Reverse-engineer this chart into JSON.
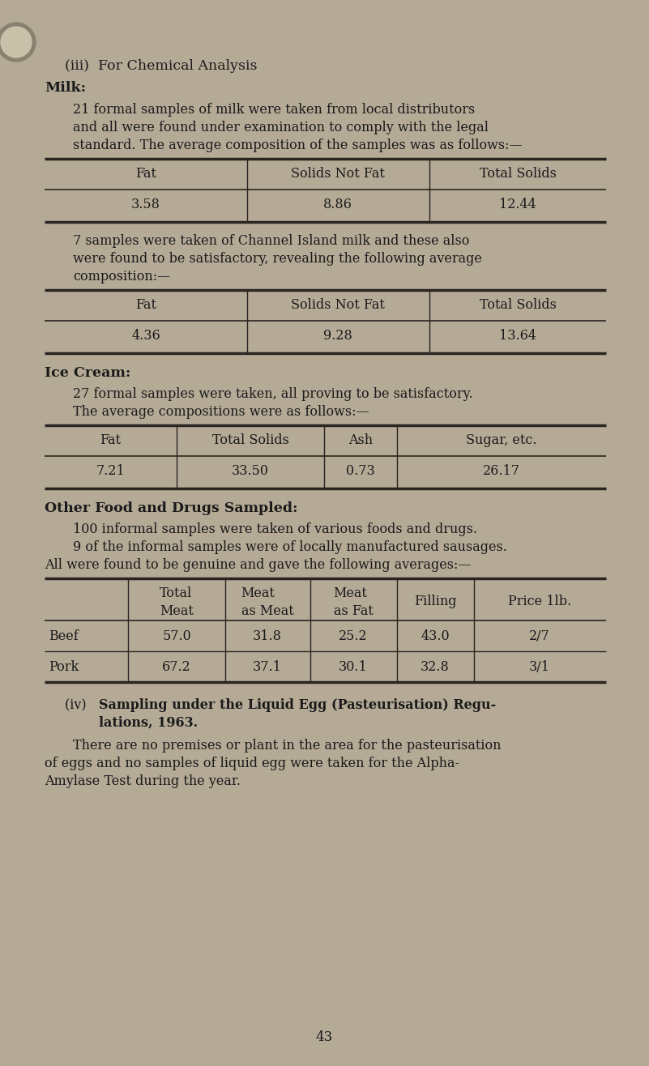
{
  "bg_color": "#b5aa96",
  "text_color": "#1a1a1a",
  "page_number": "43",
  "milk_table1_headers": [
    "Fat",
    "Solids Not Fat",
    "Total Solids"
  ],
  "milk_table1_row": [
    "3.58",
    "8.86",
    "12.44"
  ],
  "milk_table2_headers": [
    "Fat",
    "Solids Not Fat",
    "Total Solids"
  ],
  "milk_table2_row": [
    "4.36",
    "9.28",
    "13.64"
  ],
  "ice_table_headers": [
    "Fat",
    "Total Solids",
    "Ash",
    "Sugar, etc."
  ],
  "ice_table_row": [
    "7.21",
    "33.50",
    "0.73",
    "26.17"
  ],
  "sausage_table_rows": [
    [
      "Beef",
      "57.0",
      "31.8",
      "25.2",
      "43.0",
      "2/7"
    ],
    [
      "Pork",
      "67.2",
      "37.1",
      "30.1",
      "32.8",
      "3/1"
    ]
  ]
}
